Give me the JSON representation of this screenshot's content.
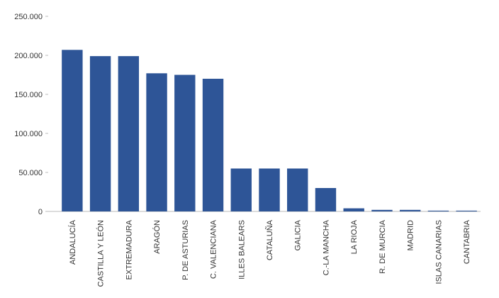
{
  "chart_data": {
    "type": "bar",
    "categories": [
      "ANDALUCÍA",
      "CASTILLA Y LEÓN",
      "EXTREMADURA",
      "ARAGÓN",
      "P. DE ASTURIAS",
      "C. VALENCIANA",
      "ILLES BALEARS",
      "CATALUÑA",
      "GALICIA",
      "C.-LA MANCHA",
      "LA RIOJA",
      "R. DE MURCIA",
      "MADRID",
      "ISLAS CANARIAS",
      "CANTABRIA"
    ],
    "values": [
      207000,
      199000,
      199000,
      177000,
      175000,
      170000,
      55000,
      55000,
      55000,
      30000,
      4000,
      2000,
      2000,
      1000,
      1000
    ],
    "color": "#2e5597",
    "ylim": [
      0,
      250000
    ],
    "yticks": [
      0,
      {
        "value": 50000,
        "label": "50.000"
      },
      {
        "value": 100000,
        "label": "100.000"
      },
      {
        "value": 150000,
        "label": "150.000"
      },
      {
        "value": 200000,
        "label": "200.000"
      },
      {
        "value": 250000,
        "label": "250.000"
      }
    ],
    "grid": false
  }
}
